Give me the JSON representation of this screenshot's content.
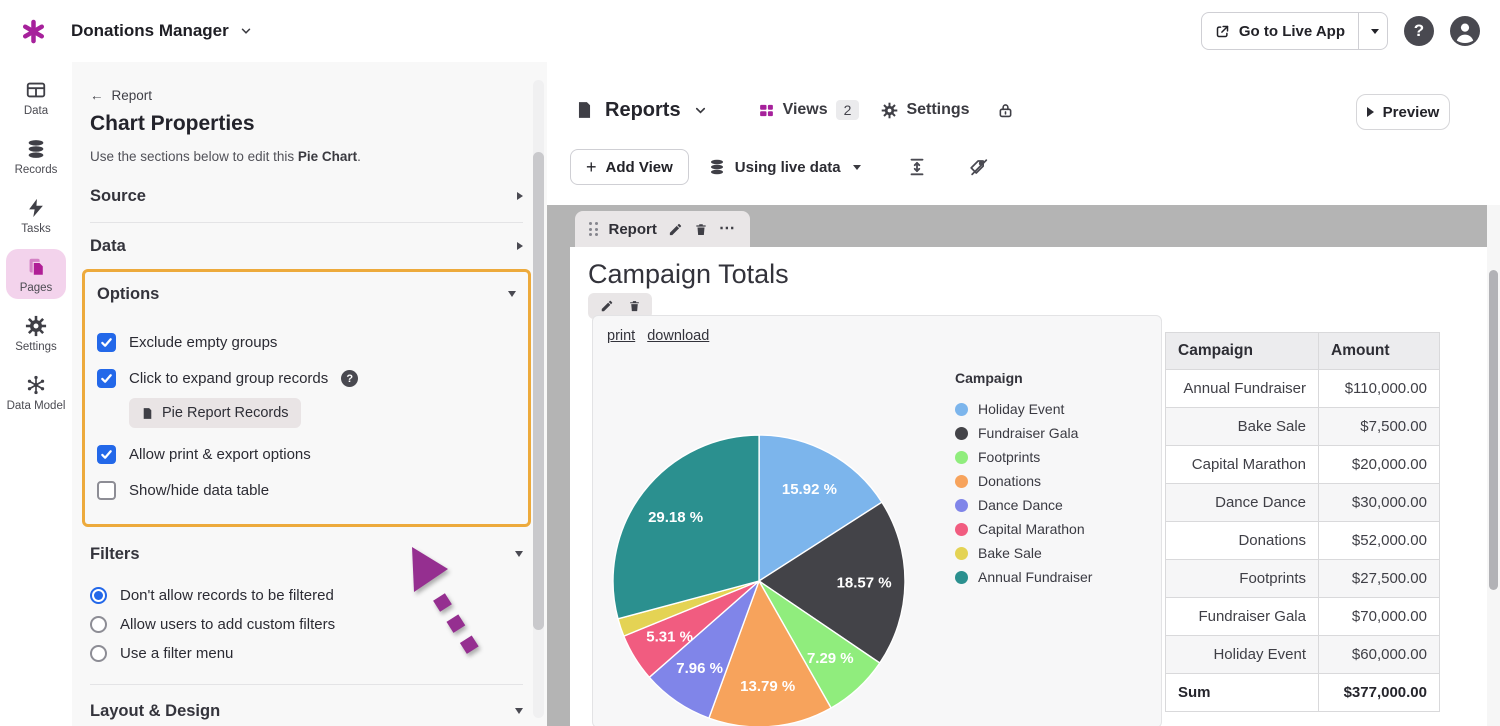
{
  "app_bar": {
    "app_name": "Donations Manager",
    "go_to_live_app": "Go to Live App",
    "help": "?"
  },
  "nav_rail": {
    "items": [
      {
        "label": "Data",
        "active": false
      },
      {
        "label": "Records",
        "active": false
      },
      {
        "label": "Tasks",
        "active": false
      },
      {
        "label": "Pages",
        "active": true
      },
      {
        "label": "Settings",
        "active": false
      },
      {
        "label": "Data Model",
        "active": false
      }
    ]
  },
  "properties_panel": {
    "back_label": "Report",
    "title": "Chart Properties",
    "description_prefix": "Use the sections below to edit this ",
    "description_bold": "Pie Chart",
    "description_suffix": ".",
    "sections": {
      "source": "Source",
      "data": "Data",
      "layout": "Layout & Design"
    },
    "options": {
      "title": "Options",
      "checkboxes": [
        {
          "label": "Exclude empty groups",
          "checked": true,
          "has_help": false
        },
        {
          "label": "Click to expand group records",
          "checked": true,
          "has_help": true,
          "chip": {
            "label": "Pie Report Records"
          }
        },
        {
          "label": "Allow print & export options",
          "checked": true,
          "has_help": false
        },
        {
          "label": "Show/hide data table",
          "checked": false,
          "has_help": false
        }
      ]
    },
    "filters": {
      "title": "Filters",
      "radios": [
        {
          "label": "Don't allow records to be filtered",
          "selected": true
        },
        {
          "label": "Allow users to add custom filters",
          "selected": false
        },
        {
          "label": "Use a filter menu",
          "selected": false
        }
      ]
    },
    "highlight_color": "#edaa3c"
  },
  "main_toolbar": {
    "page_name": "Reports",
    "views_label": "Views",
    "views_count": "2",
    "settings_label": "Settings",
    "add_view_plus": "+",
    "add_view_label": "Add View",
    "live_data_label": "Using live data",
    "preview_label": "Preview"
  },
  "report_view": {
    "tab_label": "Report",
    "tab_menu": "⋯",
    "title": "Campaign Totals",
    "print_link": "print",
    "download_link": "download"
  },
  "chart_data": {
    "type": "pie",
    "title": "Campaign Totals",
    "legend_title": "Campaign",
    "legend_position": "right",
    "start_angle_deg": -90,
    "direction": "clockwise",
    "total": 377000,
    "total_label": "$377,000.00",
    "slices": [
      {
        "label": "Holiday Event",
        "value": 60000,
        "percent": 15.92,
        "percent_label": "15.92 %",
        "color": "#7cb5ec"
      },
      {
        "label": "Fundraiser Gala",
        "value": 70000,
        "percent": 18.57,
        "percent_label": "18.57 %",
        "color": "#434348"
      },
      {
        "label": "Footprints",
        "value": 27500,
        "percent": 7.29,
        "percent_label": "7.29 %",
        "color": "#90ed7d"
      },
      {
        "label": "Donations",
        "value": 52000,
        "percent": 13.79,
        "percent_label": "13.79 %",
        "color": "#f7a35c"
      },
      {
        "label": "Dance Dance",
        "value": 30000,
        "percent": 7.96,
        "percent_label": "7.96 %",
        "color": "#8085e9"
      },
      {
        "label": "Capital Marathon",
        "value": 20000,
        "percent": 5.31,
        "percent_label": "5.31 %",
        "color": "#f15c80"
      },
      {
        "label": "Bake Sale",
        "value": 7500,
        "percent": 1.99,
        "percent_label": null,
        "color": "#e4d354"
      },
      {
        "label": "Annual Fundraiser",
        "value": 110000,
        "percent": 29.18,
        "percent_label": "29.18 %",
        "color": "#2b908f"
      }
    ]
  },
  "data_table": {
    "headers": [
      "Campaign",
      "Amount"
    ],
    "rows": [
      [
        "Annual Fundraiser",
        "$110,000.00"
      ],
      [
        "Bake Sale",
        "$7,500.00"
      ],
      [
        "Capital Marathon",
        "$20,000.00"
      ],
      [
        "Dance Dance",
        "$30,000.00"
      ],
      [
        "Donations",
        "$52,000.00"
      ],
      [
        "Footprints",
        "$27,500.00"
      ],
      [
        "Fundraiser Gala",
        "$70,000.00"
      ],
      [
        "Holiday Event",
        "$60,000.00"
      ]
    ],
    "sum_row": {
      "label": "Sum",
      "value": "$377,000.00"
    }
  },
  "colors": {
    "brand_magenta": "#a6219b",
    "accent_blue": "#2368e9",
    "highlight_yellow": "#edaa3c",
    "canvas_gray": "#b4b4b4",
    "arrow_purple": "#952f90"
  }
}
